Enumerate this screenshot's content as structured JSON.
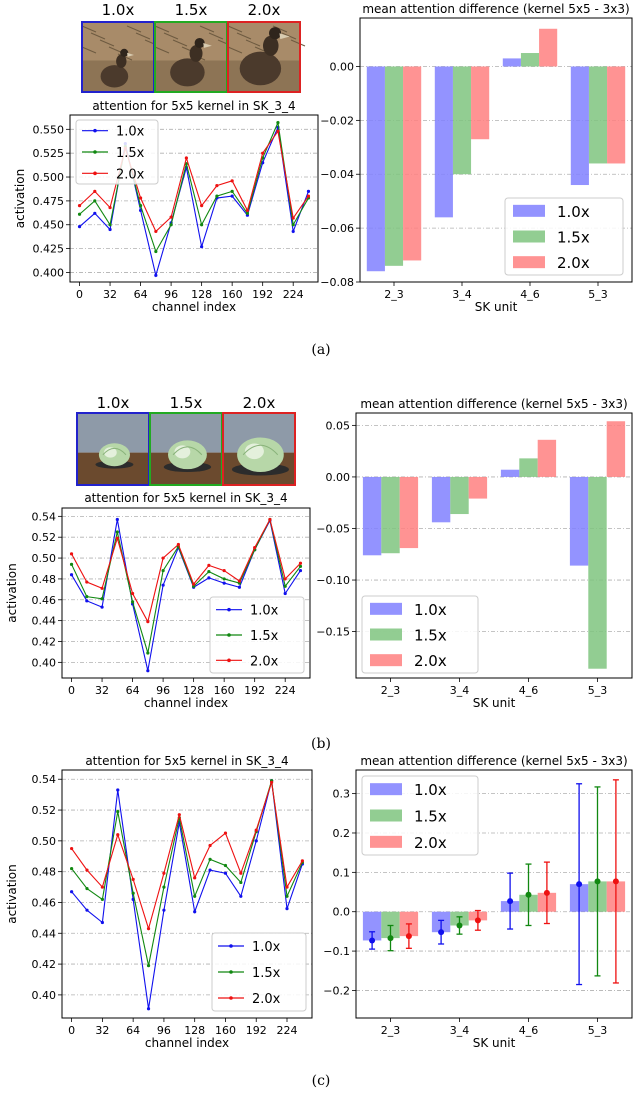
{
  "panels": [
    {
      "caption": "(a)",
      "images": [
        {
          "label": "1.0x",
          "color": "#2222cc",
          "subject": "bird-on-nest"
        },
        {
          "label": "1.5x",
          "color": "#22aa22",
          "subject": "bird-on-nest"
        },
        {
          "label": "2.0x",
          "color": "#dd2222",
          "subject": "bird-on-nest"
        }
      ],
      "chart_data": [
        {
          "type": "line",
          "title": "attention for 5x5 kernel in SK_3_4",
          "xlabel": "channel index",
          "ylabel": "activation",
          "x": [
            0,
            16,
            32,
            48,
            64,
            80,
            96,
            112,
            128,
            144,
            160,
            176,
            192,
            208,
            224,
            240
          ],
          "xticks": [
            0,
            32,
            64,
            96,
            128,
            160,
            192,
            224
          ],
          "xlim": [
            -10,
            250
          ],
          "ylim": [
            0.39,
            0.565
          ],
          "yticks": [
            0.4,
            0.425,
            0.45,
            0.475,
            0.5,
            0.525,
            0.55
          ],
          "ytick_labels": [
            "0.400",
            "0.425",
            "0.450",
            "0.475",
            "0.500",
            "0.525",
            "0.550"
          ],
          "legend": "top-left",
          "grid": true,
          "series": [
            {
              "name": "1.0x",
              "color": "#1010ee",
              "values": [
                0.448,
                0.462,
                0.445,
                0.535,
                0.465,
                0.397,
                0.452,
                0.51,
                0.427,
                0.478,
                0.48,
                0.46,
                0.515,
                0.552,
                0.443,
                0.485
              ]
            },
            {
              "name": "1.5x",
              "color": "#118811",
              "values": [
                0.461,
                0.475,
                0.45,
                0.532,
                0.47,
                0.422,
                0.45,
                0.514,
                0.45,
                0.48,
                0.485,
                0.462,
                0.52,
                0.557,
                0.45,
                0.478
              ]
            },
            {
              "name": "2.0x",
              "color": "#ee1111",
              "values": [
                0.47,
                0.485,
                0.468,
                0.53,
                0.478,
                0.443,
                0.458,
                0.52,
                0.47,
                0.491,
                0.496,
                0.465,
                0.525,
                0.548,
                0.457,
                0.48
              ]
            }
          ]
        },
        {
          "type": "bar",
          "title": "mean attention difference (kernel 5x5 - 3x3)",
          "xlabel": "SK unit",
          "ylabel": "",
          "categories": [
            "2_3",
            "3_4",
            "4_6",
            "5_3"
          ],
          "ylim": [
            -0.08,
            0.018
          ],
          "yticks": [
            -0.08,
            -0.06,
            -0.04,
            -0.02,
            0.0
          ],
          "ytick_labels": [
            "−0.08",
            "−0.06",
            "−0.04",
            "−0.02",
            "0.00"
          ],
          "legend": "bottom-right",
          "grid": true,
          "series": [
            {
              "name": "1.0x",
              "color": "#8080ff",
              "values": [
                -0.076,
                -0.056,
                0.003,
                -0.044
              ]
            },
            {
              "name": "1.5x",
              "color": "#7fc47f",
              "values": [
                -0.074,
                -0.04,
                0.005,
                -0.036
              ]
            },
            {
              "name": "2.0x",
              "color": "#ff8080",
              "values": [
                -0.072,
                -0.027,
                0.014,
                -0.036
              ]
            }
          ]
        }
      ]
    },
    {
      "caption": "(b)",
      "images": [
        {
          "label": "1.0x",
          "color": "#2222cc",
          "subject": "cabbage"
        },
        {
          "label": "1.5x",
          "color": "#22aa22",
          "subject": "cabbage"
        },
        {
          "label": "2.0x",
          "color": "#dd2222",
          "subject": "cabbage"
        }
      ],
      "chart_data": [
        {
          "type": "line",
          "title": "attention for 5x5 kernel in SK_3_4",
          "xlabel": "channel index",
          "ylabel": "activation",
          "x": [
            0,
            16,
            32,
            48,
            64,
            80,
            96,
            112,
            128,
            144,
            160,
            176,
            192,
            208,
            224,
            240
          ],
          "xticks": [
            0,
            32,
            64,
            96,
            128,
            160,
            192,
            224
          ],
          "xlim": [
            -10,
            250
          ],
          "ylim": [
            0.385,
            0.548
          ],
          "yticks": [
            0.4,
            0.42,
            0.44,
            0.46,
            0.48,
            0.5,
            0.52,
            0.54
          ],
          "ytick_labels": [
            "0.40",
            "0.42",
            "0.44",
            "0.46",
            "0.48",
            "0.50",
            "0.52",
            "0.54"
          ],
          "legend": "bottom-right",
          "grid": true,
          "series": [
            {
              "name": "1.0x",
              "color": "#1010ee",
              "values": [
                0.484,
                0.459,
                0.453,
                0.537,
                0.456,
                0.392,
                0.474,
                0.51,
                0.472,
                0.481,
                0.476,
                0.472,
                0.508,
                0.536,
                0.466,
                0.488
              ]
            },
            {
              "name": "1.5x",
              "color": "#118811",
              "values": [
                0.494,
                0.463,
                0.461,
                0.525,
                0.458,
                0.409,
                0.488,
                0.511,
                0.473,
                0.487,
                0.48,
                0.476,
                0.508,
                0.537,
                0.473,
                0.492
              ]
            },
            {
              "name": "2.0x",
              "color": "#ee1111",
              "values": [
                0.504,
                0.477,
                0.471,
                0.519,
                0.466,
                0.439,
                0.5,
                0.513,
                0.475,
                0.493,
                0.488,
                0.478,
                0.51,
                0.537,
                0.48,
                0.495
              ]
            }
          ]
        },
        {
          "type": "bar",
          "title": "mean attention difference (kernel 5x5 - 3x3)",
          "xlabel": "SK unit",
          "ylabel": "",
          "categories": [
            "2_3",
            "3_4",
            "4_6",
            "5_3"
          ],
          "ylim": [
            -0.195,
            0.062
          ],
          "yticks": [
            -0.15,
            -0.1,
            -0.05,
            0.0,
            0.05
          ],
          "ytick_labels": [
            "−0.15",
            "−0.10",
            "−0.05",
            "0.00",
            "0.05"
          ],
          "legend": "bottom-left",
          "grid": true,
          "series": [
            {
              "name": "1.0x",
              "color": "#8080ff",
              "values": [
                -0.076,
                -0.044,
                0.007,
                -0.086
              ]
            },
            {
              "name": "1.5x",
              "color": "#7fc47f",
              "values": [
                -0.074,
                -0.036,
                0.018,
                -0.186
              ]
            },
            {
              "name": "2.0x",
              "color": "#ff8080",
              "values": [
                -0.069,
                -0.021,
                0.036,
                0.054
              ]
            }
          ]
        }
      ]
    },
    {
      "caption": "(c)",
      "images": [],
      "chart_data": [
        {
          "type": "line",
          "title": "attention for 5x5 kernel in SK_3_4",
          "xlabel": "channel index",
          "ylabel": "activation",
          "x": [
            0,
            16,
            32,
            48,
            64,
            80,
            96,
            112,
            128,
            144,
            160,
            176,
            192,
            208,
            224,
            240
          ],
          "xticks": [
            0,
            32,
            64,
            96,
            128,
            160,
            192,
            224
          ],
          "xlim": [
            -10,
            250
          ],
          "ylim": [
            0.385,
            0.546
          ],
          "yticks": [
            0.4,
            0.42,
            0.44,
            0.46,
            0.48,
            0.5,
            0.52,
            0.54
          ],
          "ytick_labels": [
            "0.40",
            "0.42",
            "0.44",
            "0.46",
            "0.48",
            "0.50",
            "0.52",
            "0.54"
          ],
          "legend": "bottom-right",
          "grid": true,
          "series": [
            {
              "name": "1.0x",
              "color": "#1010ee",
              "values": [
                0.467,
                0.455,
                0.447,
                0.533,
                0.462,
                0.391,
                0.455,
                0.512,
                0.454,
                0.481,
                0.479,
                0.464,
                0.5,
                0.539,
                0.456,
                0.485
              ]
            },
            {
              "name": "1.5x",
              "color": "#118811",
              "values": [
                0.482,
                0.469,
                0.462,
                0.519,
                0.466,
                0.419,
                0.47,
                0.515,
                0.464,
                0.488,
                0.484,
                0.473,
                0.506,
                0.539,
                0.464,
                0.486
              ]
            },
            {
              "name": "2.0x",
              "color": "#ee1111",
              "values": [
                0.495,
                0.481,
                0.47,
                0.504,
                0.475,
                0.443,
                0.479,
                0.517,
                0.476,
                0.497,
                0.505,
                0.479,
                0.507,
                0.538,
                0.47,
                0.487
              ]
            }
          ]
        },
        {
          "type": "bar",
          "title": "mean attention difference (kernel 5x5 - 3x3)",
          "xlabel": "SK unit",
          "ylabel": "",
          "categories": [
            "2_3",
            "3_4",
            "4_6",
            "5_3"
          ],
          "ylim": [
            -0.27,
            0.36
          ],
          "yticks": [
            -0.2,
            -0.1,
            0.0,
            0.1,
            0.2,
            0.3
          ],
          "ytick_labels": [
            "−0.2",
            "−0.1",
            "0.0",
            "0.1",
            "0.2",
            "0.3"
          ],
          "legend": "top-left",
          "grid": true,
          "series": [
            {
              "name": "1.0x",
              "color": "#8080ff",
              "values": [
                -0.073,
                -0.052,
                0.027,
                0.07
              ],
              "err": [
                0.022,
                0.03,
                0.071,
                0.255
              ]
            },
            {
              "name": "1.5x",
              "color": "#7fc47f",
              "values": [
                -0.067,
                -0.035,
                0.043,
                0.077
              ],
              "err": [
                0.032,
                0.022,
                0.078,
                0.24
              ]
            },
            {
              "name": "2.0x",
              "color": "#ff8080",
              "values": [
                -0.062,
                -0.022,
                0.048,
                0.077
              ],
              "err": [
                0.031,
                0.025,
                0.078,
                0.258
              ]
            }
          ]
        }
      ]
    }
  ]
}
